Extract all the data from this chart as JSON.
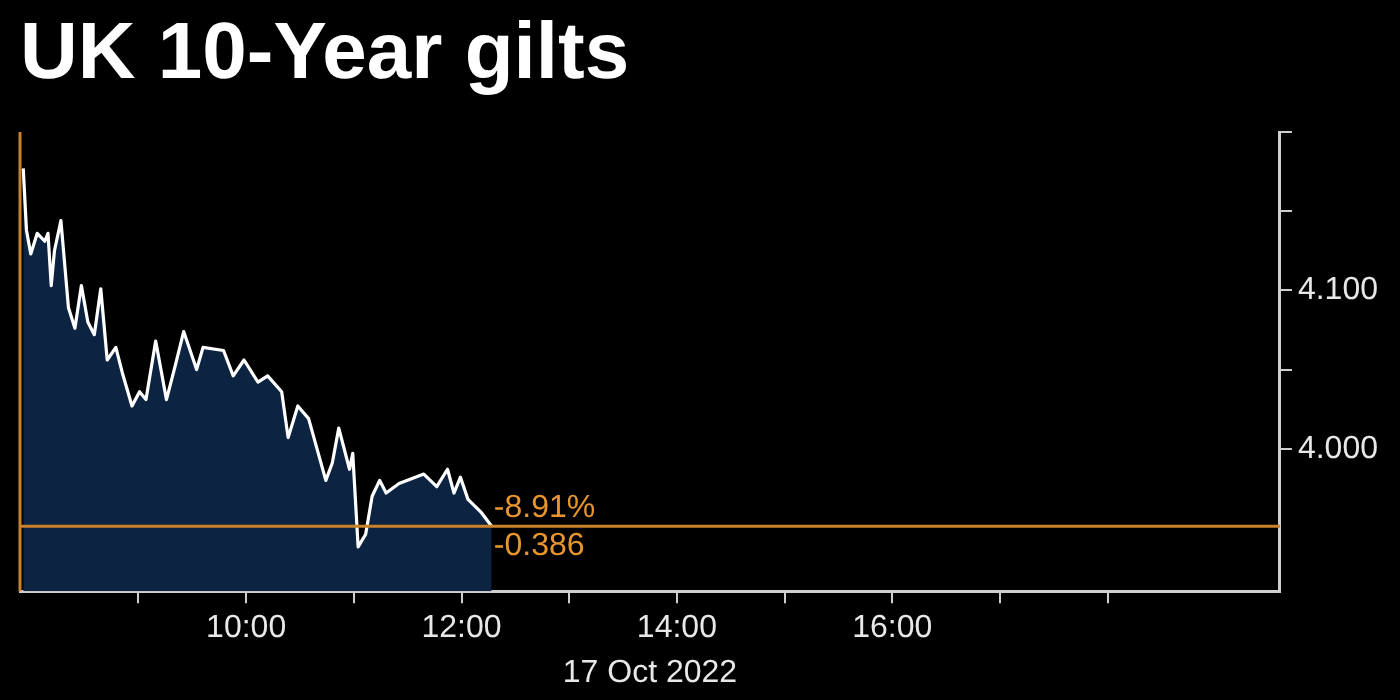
{
  "chart_data": {
    "type": "area",
    "title": "UK 10-Year gilts",
    "xlabel": "17 Oct 2022",
    "series": [
      {
        "color": "#ffffff",
        "x": [
          7.93,
          7.96,
          8.0,
          8.06,
          8.13,
          8.16,
          8.19,
          8.22,
          8.28,
          8.35,
          8.41,
          8.47,
          8.53,
          8.59,
          8.65,
          8.71,
          8.79,
          8.85,
          8.94,
          9.01,
          9.07,
          9.16,
          9.26,
          9.34,
          9.42,
          9.54,
          9.6,
          9.79,
          9.88,
          9.98,
          10.11,
          10.2,
          10.33,
          10.39,
          10.48,
          10.58,
          10.74,
          10.8,
          10.86,
          10.96,
          10.99,
          11.04,
          11.11,
          11.17,
          11.24,
          11.3,
          11.42,
          11.65,
          11.77,
          11.87,
          11.93,
          11.99,
          12.06,
          12.18,
          12.28
        ],
        "values": [
          4.177,
          4.138,
          4.123,
          4.136,
          4.131,
          4.136,
          4.103,
          4.125,
          4.144,
          4.089,
          4.076,
          4.103,
          4.08,
          4.072,
          4.101,
          4.056,
          4.064,
          4.048,
          4.027,
          4.036,
          4.031,
          4.068,
          4.031,
          4.052,
          4.074,
          4.05,
          4.064,
          4.062,
          4.046,
          4.056,
          4.042,
          4.046,
          4.036,
          4.007,
          4.027,
          4.019,
          3.98,
          3.991,
          4.013,
          3.987,
          3.997,
          3.938,
          3.946,
          3.97,
          3.98,
          3.972,
          3.978,
          3.984,
          3.976,
          3.987,
          3.972,
          3.982,
          3.968,
          3.96,
          3.951
        ]
      }
    ],
    "xlim": [
      7.9,
      19.6
    ],
    "xticks": [
      {
        "value": 9,
        "label": null
      },
      {
        "value": 10,
        "label": "10:00"
      },
      {
        "value": 11,
        "label": null
      },
      {
        "value": 12,
        "label": "12:00"
      },
      {
        "value": 13,
        "label": null
      },
      {
        "value": 14,
        "label": "14:00"
      },
      {
        "value": 15,
        "label": null
      },
      {
        "value": 16,
        "label": "16:00"
      },
      {
        "value": 17,
        "label": null
      },
      {
        "value": 18,
        "label": null
      }
    ],
    "ylim": [
      3.91,
      4.2
    ],
    "yticks": [
      {
        "value": 4.0,
        "label": "4.000"
      },
      {
        "value": 4.05,
        "label": null
      },
      {
        "value": 4.1,
        "label": "4.100"
      },
      {
        "value": 4.15,
        "label": null
      },
      {
        "value": 4.2,
        "label": null
      }
    ],
    "ref_lines": [
      {
        "axis": "y",
        "value": 3.951,
        "color": "#c8822a"
      },
      {
        "axis": "x",
        "value": 7.9,
        "color": "#c8822a"
      }
    ],
    "annotations": [
      {
        "text": "-8.91%",
        "x": 12.3,
        "y": 3.951
      },
      {
        "text": "-0.386",
        "x": 12.3,
        "y": 3.951
      }
    ],
    "grid": false,
    "legend": false
  }
}
